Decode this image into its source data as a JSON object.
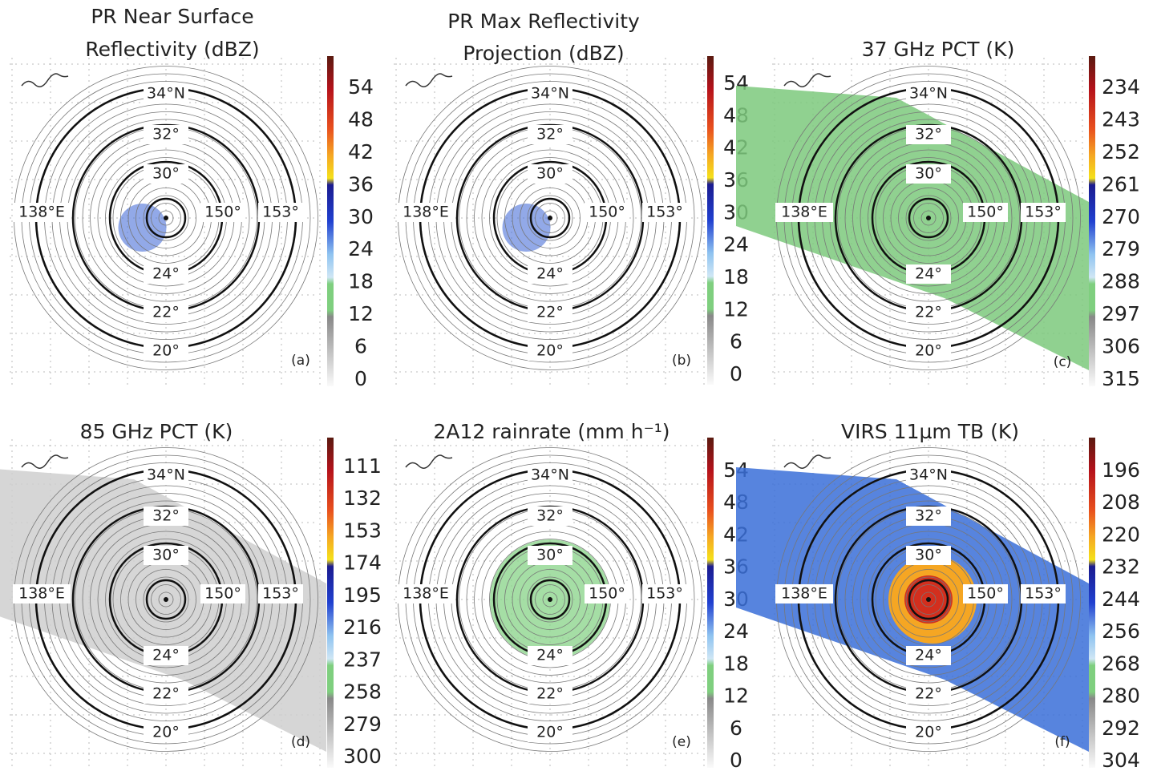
{
  "panels": [
    {
      "title": [
        "PR Near Surface",
        "Reflectivity (dBZ)"
      ],
      "label": "(a)",
      "colorbar_ticks": [
        54,
        48,
        42,
        36,
        30,
        24,
        18,
        12,
        6,
        0
      ]
    },
    {
      "title": [
        "PR Max Reflectivity",
        "Projection (dBZ)"
      ],
      "label": "(b)",
      "colorbar_ticks": [
        54,
        48,
        42,
        36,
        30,
        24,
        18,
        12,
        6,
        0
      ]
    },
    {
      "title": [
        "37 GHz PCT (K)"
      ],
      "label": "(c)",
      "colorbar_ticks": [
        234,
        243,
        252,
        261,
        270,
        279,
        288,
        297,
        306,
        315
      ]
    },
    {
      "title": [
        "85 GHz PCT (K)"
      ],
      "label": "(d)",
      "colorbar_ticks": [
        111,
        132,
        153,
        174,
        195,
        216,
        237,
        258,
        279,
        300
      ]
    },
    {
      "title": [
        "2A12 rainrate (mm h⁻¹)"
      ],
      "label": "(e)",
      "colorbar_ticks": [
        54,
        48,
        42,
        36,
        30,
        24,
        18,
        12,
        6,
        0
      ]
    },
    {
      "title": [
        "VIRS 11µm TB (K)"
      ],
      "label": "(f)",
      "colorbar_ticks": [
        196,
        208,
        220,
        232,
        244,
        256,
        268,
        280,
        292,
        304
      ]
    }
  ],
  "map_labels": {
    "lat": [
      "34°N",
      "32°",
      "30°",
      "24°",
      "22°",
      "20°"
    ],
    "lon": [
      "138°E",
      "150°",
      "153°"
    ]
  }
}
